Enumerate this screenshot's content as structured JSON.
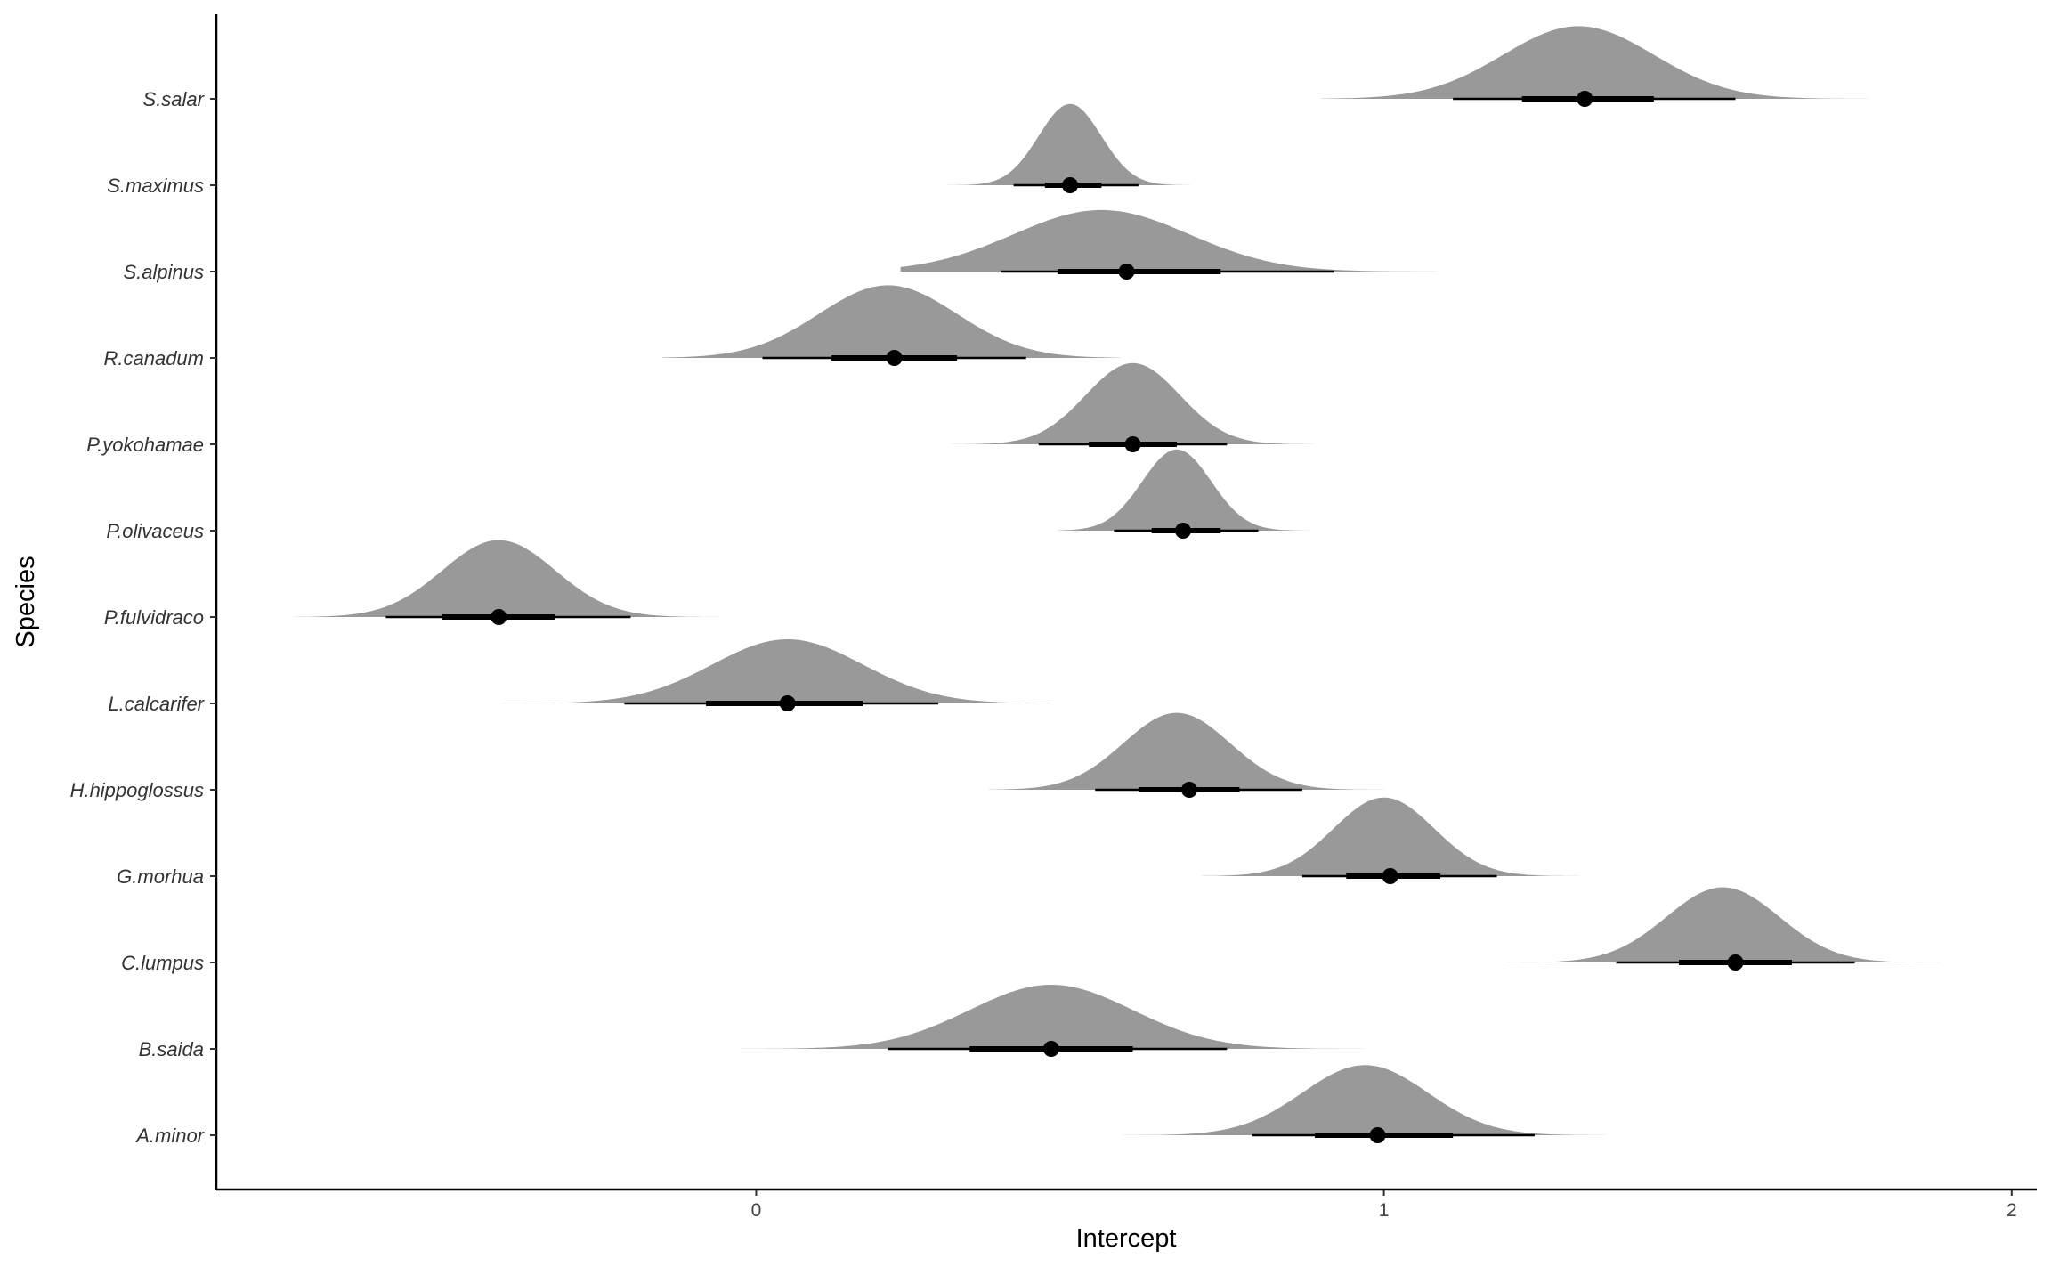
{
  "chart_data": {
    "type": "density-interval",
    "title": "",
    "xlabel": "Intercept",
    "ylabel": "Species",
    "xlim": [
      -0.86,
      2.04
    ],
    "x_ticks": [
      0,
      1,
      2
    ],
    "x_tick_labels": [
      "0",
      "1",
      "2"
    ],
    "grid": false,
    "legend": "none",
    "density_color": "#999999",
    "point_color": "#000000",
    "categories": [
      "S.salar",
      "S.maximus",
      "S.alpinus",
      "R.canadum",
      "P.yokohamae",
      "P.olivaceus",
      "P.fulvidraco",
      "L.calcarifer",
      "H.hippoglossus",
      "G.morhua",
      "C.lumpus",
      "B.saida",
      "A.minor"
    ],
    "series": [
      {
        "species": "S.salar",
        "mode": 1.31,
        "median": 1.32,
        "interval_66": [
          1.22,
          1.43
        ],
        "interval_95": [
          1.11,
          1.56
        ],
        "range": [
          0.9,
          1.83
        ],
        "sd": 0.12,
        "peak": 0.85
      },
      {
        "species": "S.maximus",
        "mode": 0.5,
        "median": 0.5,
        "interval_66": [
          0.46,
          0.55
        ],
        "interval_95": [
          0.41,
          0.61
        ],
        "range": [
          0.3,
          0.73
        ],
        "sd": 0.05,
        "peak": 0.95
      },
      {
        "species": "S.alpinus",
        "mode": 0.55,
        "median": 0.59,
        "interval_66": [
          0.48,
          0.74
        ],
        "interval_95": [
          0.39,
          0.92
        ],
        "range": [
          0.23,
          1.23
        ],
        "sd": 0.14,
        "peak": 0.72
      },
      {
        "species": "R.canadum",
        "mode": 0.21,
        "median": 0.22,
        "interval_66": [
          0.12,
          0.32
        ],
        "interval_95": [
          0.01,
          0.43
        ],
        "range": [
          -0.15,
          0.58
        ],
        "sd": 0.11,
        "peak": 0.85
      },
      {
        "species": "P.yokohamae",
        "mode": 0.6,
        "median": 0.6,
        "interval_66": [
          0.53,
          0.67
        ],
        "interval_95": [
          0.45,
          0.75
        ],
        "range": [
          0.31,
          0.94
        ],
        "sd": 0.075,
        "peak": 0.95
      },
      {
        "species": "P.olivaceus",
        "mode": 0.67,
        "median": 0.68,
        "interval_66": [
          0.63,
          0.74
        ],
        "interval_95": [
          0.57,
          0.8
        ],
        "range": [
          0.48,
          0.91
        ],
        "sd": 0.055,
        "peak": 0.95
      },
      {
        "species": "P.fulvidraco",
        "mode": -0.41,
        "median": -0.41,
        "interval_66": [
          -0.5,
          -0.32
        ],
        "interval_95": [
          -0.59,
          -0.2
        ],
        "range": [
          -0.74,
          -0.04
        ],
        "sd": 0.09,
        "peak": 0.9
      },
      {
        "species": "L.calcarifer",
        "mode": 0.05,
        "median": 0.05,
        "interval_66": [
          -0.08,
          0.17
        ],
        "interval_95": [
          -0.21,
          0.29
        ],
        "range": [
          -0.44,
          0.47
        ],
        "sd": 0.12,
        "peak": 0.75
      },
      {
        "species": "H.hippoglossus",
        "mode": 0.67,
        "median": 0.69,
        "interval_66": [
          0.61,
          0.77
        ],
        "interval_95": [
          0.54,
          0.87
        ],
        "range": [
          0.37,
          1.1
        ],
        "sd": 0.085,
        "peak": 0.9
      },
      {
        "species": "G.morhua",
        "mode": 1.0,
        "median": 1.01,
        "interval_66": [
          0.94,
          1.09
        ],
        "interval_95": [
          0.87,
          1.18
        ],
        "range": [
          0.71,
          1.34
        ],
        "sd": 0.08,
        "peak": 0.92
      },
      {
        "species": "C.lumpus",
        "mode": 1.54,
        "median": 1.56,
        "interval_66": [
          1.47,
          1.65
        ],
        "interval_95": [
          1.37,
          1.75
        ],
        "range": [
          1.14,
          1.9
        ],
        "sd": 0.09,
        "peak": 0.88
      },
      {
        "species": "B.saida",
        "mode": 0.47,
        "median": 0.47,
        "interval_66": [
          0.34,
          0.6
        ],
        "interval_95": [
          0.21,
          0.75
        ],
        "range": [
          -0.04,
          0.99
        ],
        "sd": 0.13,
        "peak": 0.75
      },
      {
        "species": "A.minor",
        "mode": 0.97,
        "median": 0.99,
        "interval_66": [
          0.89,
          1.11
        ],
        "interval_95": [
          0.79,
          1.24
        ],
        "range": [
          0.58,
          1.46
        ],
        "sd": 0.1,
        "peak": 0.82
      }
    ]
  }
}
